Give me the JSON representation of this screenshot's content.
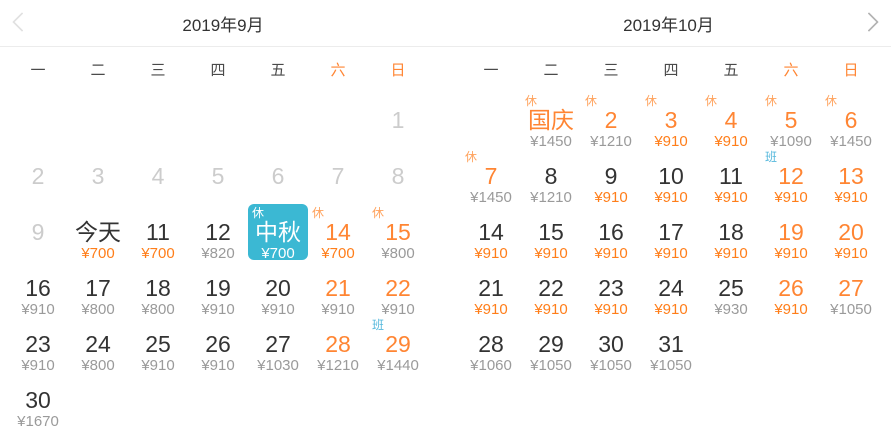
{
  "colors": {
    "accent_orange": "#ff7e1a",
    "day_orange": "#ff8533",
    "rest_badge_orange": "#ffa35e",
    "work_badge_blue": "#55b8dc",
    "selected_day_bg": "#3bb8d3",
    "price_gray": "#9a9a9a",
    "day_dark": "#333333",
    "past_day_gray": "#cccccc"
  },
  "nav": {
    "prev": "previous-month",
    "next": "next-month"
  },
  "weekdays": [
    {
      "label": "一",
      "weekend": false
    },
    {
      "label": "二",
      "weekend": false
    },
    {
      "label": "三",
      "weekend": false
    },
    {
      "label": "四",
      "weekend": false
    },
    {
      "label": "五",
      "weekend": false
    },
    {
      "label": "六",
      "weekend": true
    },
    {
      "label": "日",
      "weekend": true
    }
  ],
  "months": [
    {
      "title": "2019年9月",
      "cells": [
        {
          "label": "1",
          "col": 6,
          "day_color": "past",
          "price": "",
          "price_color": "",
          "badge": "",
          "badge_type": "",
          "selected": false
        },
        {
          "label": "2",
          "col": 0,
          "day_color": "past",
          "price": "",
          "price_color": "",
          "badge": "",
          "badge_type": "",
          "selected": false
        },
        {
          "label": "3",
          "col": 1,
          "day_color": "past",
          "price": "",
          "price_color": "",
          "badge": "",
          "badge_type": "",
          "selected": false
        },
        {
          "label": "4",
          "col": 2,
          "day_color": "past",
          "price": "",
          "price_color": "",
          "badge": "",
          "badge_type": "",
          "selected": false
        },
        {
          "label": "5",
          "col": 3,
          "day_color": "past",
          "price": "",
          "price_color": "",
          "badge": "",
          "badge_type": "",
          "selected": false
        },
        {
          "label": "6",
          "col": 4,
          "day_color": "past",
          "price": "",
          "price_color": "",
          "badge": "",
          "badge_type": "",
          "selected": false
        },
        {
          "label": "7",
          "col": 5,
          "day_color": "past",
          "price": "",
          "price_color": "",
          "badge": "",
          "badge_type": "",
          "selected": false
        },
        {
          "label": "8",
          "col": 6,
          "day_color": "past",
          "price": "",
          "price_color": "",
          "badge": "",
          "badge_type": "",
          "selected": false
        },
        {
          "label": "9",
          "col": 0,
          "day_color": "past",
          "price": "",
          "price_color": "",
          "badge": "",
          "badge_type": "",
          "selected": false
        },
        {
          "label": "今天",
          "col": 1,
          "day_color": "dark",
          "price": "¥700",
          "price_color": "orange",
          "badge": "",
          "badge_type": "",
          "selected": false
        },
        {
          "label": "11",
          "col": 2,
          "day_color": "dark",
          "price": "¥700",
          "price_color": "orange",
          "badge": "",
          "badge_type": "",
          "selected": false
        },
        {
          "label": "12",
          "col": 3,
          "day_color": "dark",
          "price": "¥820",
          "price_color": "gray",
          "badge": "",
          "badge_type": "",
          "selected": false
        },
        {
          "label": "中秋",
          "col": 4,
          "day_color": "dark",
          "price": "¥700",
          "price_color": "orange",
          "badge": "休",
          "badge_type": "rest",
          "selected": true
        },
        {
          "label": "14",
          "col": 5,
          "day_color": "orange",
          "price": "¥700",
          "price_color": "orange",
          "badge": "休",
          "badge_type": "rest",
          "selected": false
        },
        {
          "label": "15",
          "col": 6,
          "day_color": "orange",
          "price": "¥800",
          "price_color": "gray",
          "badge": "休",
          "badge_type": "rest",
          "selected": false
        },
        {
          "label": "16",
          "col": 0,
          "day_color": "dark",
          "price": "¥910",
          "price_color": "gray",
          "badge": "",
          "badge_type": "",
          "selected": false
        },
        {
          "label": "17",
          "col": 1,
          "day_color": "dark",
          "price": "¥800",
          "price_color": "gray",
          "badge": "",
          "badge_type": "",
          "selected": false
        },
        {
          "label": "18",
          "col": 2,
          "day_color": "dark",
          "price": "¥800",
          "price_color": "gray",
          "badge": "",
          "badge_type": "",
          "selected": false
        },
        {
          "label": "19",
          "col": 3,
          "day_color": "dark",
          "price": "¥910",
          "price_color": "gray",
          "badge": "",
          "badge_type": "",
          "selected": false
        },
        {
          "label": "20",
          "col": 4,
          "day_color": "dark",
          "price": "¥910",
          "price_color": "gray",
          "badge": "",
          "badge_type": "",
          "selected": false
        },
        {
          "label": "21",
          "col": 5,
          "day_color": "orange",
          "price": "¥910",
          "price_color": "gray",
          "badge": "",
          "badge_type": "",
          "selected": false
        },
        {
          "label": "22",
          "col": 6,
          "day_color": "orange",
          "price": "¥910",
          "price_color": "gray",
          "badge": "",
          "badge_type": "",
          "selected": false
        },
        {
          "label": "23",
          "col": 0,
          "day_color": "dark",
          "price": "¥910",
          "price_color": "gray",
          "badge": "",
          "badge_type": "",
          "selected": false
        },
        {
          "label": "24",
          "col": 1,
          "day_color": "dark",
          "price": "¥800",
          "price_color": "gray",
          "badge": "",
          "badge_type": "",
          "selected": false
        },
        {
          "label": "25",
          "col": 2,
          "day_color": "dark",
          "price": "¥910",
          "price_color": "gray",
          "badge": "",
          "badge_type": "",
          "selected": false
        },
        {
          "label": "26",
          "col": 3,
          "day_color": "dark",
          "price": "¥910",
          "price_color": "gray",
          "badge": "",
          "badge_type": "",
          "selected": false
        },
        {
          "label": "27",
          "col": 4,
          "day_color": "dark",
          "price": "¥1030",
          "price_color": "gray",
          "badge": "",
          "badge_type": "",
          "selected": false
        },
        {
          "label": "28",
          "col": 5,
          "day_color": "orange",
          "price": "¥1210",
          "price_color": "gray",
          "badge": "",
          "badge_type": "",
          "selected": false
        },
        {
          "label": "29",
          "col": 6,
          "day_color": "orange",
          "price": "¥1440",
          "price_color": "gray",
          "badge": "班",
          "badge_type": "work",
          "selected": false
        },
        {
          "label": "30",
          "col": 0,
          "day_color": "dark",
          "price": "¥1670",
          "price_color": "gray",
          "badge": "",
          "badge_type": "",
          "selected": false
        }
      ]
    },
    {
      "title": "2019年10月",
      "cells": [
        {
          "label": "国庆",
          "col": 1,
          "day_color": "orange",
          "price": "¥1450",
          "price_color": "gray",
          "badge": "休",
          "badge_type": "rest",
          "selected": false
        },
        {
          "label": "2",
          "col": 2,
          "day_color": "orange",
          "price": "¥1210",
          "price_color": "gray",
          "badge": "休",
          "badge_type": "rest",
          "selected": false
        },
        {
          "label": "3",
          "col": 3,
          "day_color": "orange",
          "price": "¥910",
          "price_color": "orange",
          "badge": "休",
          "badge_type": "rest",
          "selected": false
        },
        {
          "label": "4",
          "col": 4,
          "day_color": "orange",
          "price": "¥910",
          "price_color": "orange",
          "badge": "休",
          "badge_type": "rest",
          "selected": false
        },
        {
          "label": "5",
          "col": 5,
          "day_color": "orange",
          "price": "¥1090",
          "price_color": "gray",
          "badge": "休",
          "badge_type": "rest",
          "selected": false
        },
        {
          "label": "6",
          "col": 6,
          "day_color": "orange",
          "price": "¥1450",
          "price_color": "gray",
          "badge": "休",
          "badge_type": "rest",
          "selected": false
        },
        {
          "label": "7",
          "col": 0,
          "day_color": "orange",
          "price": "¥1450",
          "price_color": "gray",
          "badge": "休",
          "badge_type": "rest",
          "selected": false
        },
        {
          "label": "8",
          "col": 1,
          "day_color": "dark",
          "price": "¥1210",
          "price_color": "gray",
          "badge": "",
          "badge_type": "",
          "selected": false
        },
        {
          "label": "9",
          "col": 2,
          "day_color": "dark",
          "price": "¥910",
          "price_color": "orange",
          "badge": "",
          "badge_type": "",
          "selected": false
        },
        {
          "label": "10",
          "col": 3,
          "day_color": "dark",
          "price": "¥910",
          "price_color": "orange",
          "badge": "",
          "badge_type": "",
          "selected": false
        },
        {
          "label": "11",
          "col": 4,
          "day_color": "dark",
          "price": "¥910",
          "price_color": "orange",
          "badge": "",
          "badge_type": "",
          "selected": false
        },
        {
          "label": "12",
          "col": 5,
          "day_color": "orange",
          "price": "¥910",
          "price_color": "orange",
          "badge": "班",
          "badge_type": "work",
          "selected": false
        },
        {
          "label": "13",
          "col": 6,
          "day_color": "orange",
          "price": "¥910",
          "price_color": "orange",
          "badge": "",
          "badge_type": "",
          "selected": false
        },
        {
          "label": "14",
          "col": 0,
          "day_color": "dark",
          "price": "¥910",
          "price_color": "orange",
          "badge": "",
          "badge_type": "",
          "selected": false
        },
        {
          "label": "15",
          "col": 1,
          "day_color": "dark",
          "price": "¥910",
          "price_color": "orange",
          "badge": "",
          "badge_type": "",
          "selected": false
        },
        {
          "label": "16",
          "col": 2,
          "day_color": "dark",
          "price": "¥910",
          "price_color": "orange",
          "badge": "",
          "badge_type": "",
          "selected": false
        },
        {
          "label": "17",
          "col": 3,
          "day_color": "dark",
          "price": "¥910",
          "price_color": "orange",
          "badge": "",
          "badge_type": "",
          "selected": false
        },
        {
          "label": "18",
          "col": 4,
          "day_color": "dark",
          "price": "¥910",
          "price_color": "orange",
          "badge": "",
          "badge_type": "",
          "selected": false
        },
        {
          "label": "19",
          "col": 5,
          "day_color": "orange",
          "price": "¥910",
          "price_color": "orange",
          "badge": "",
          "badge_type": "",
          "selected": false
        },
        {
          "label": "20",
          "col": 6,
          "day_color": "orange",
          "price": "¥910",
          "price_color": "orange",
          "badge": "",
          "badge_type": "",
          "selected": false
        },
        {
          "label": "21",
          "col": 0,
          "day_color": "dark",
          "price": "¥910",
          "price_color": "orange",
          "badge": "",
          "badge_type": "",
          "selected": false
        },
        {
          "label": "22",
          "col": 1,
          "day_color": "dark",
          "price": "¥910",
          "price_color": "orange",
          "badge": "",
          "badge_type": "",
          "selected": false
        },
        {
          "label": "23",
          "col": 2,
          "day_color": "dark",
          "price": "¥910",
          "price_color": "orange",
          "badge": "",
          "badge_type": "",
          "selected": false
        },
        {
          "label": "24",
          "col": 3,
          "day_color": "dark",
          "price": "¥910",
          "price_color": "orange",
          "badge": "",
          "badge_type": "",
          "selected": false
        },
        {
          "label": "25",
          "col": 4,
          "day_color": "dark",
          "price": "¥930",
          "price_color": "gray",
          "badge": "",
          "badge_type": "",
          "selected": false
        },
        {
          "label": "26",
          "col": 5,
          "day_color": "orange",
          "price": "¥910",
          "price_color": "orange",
          "badge": "",
          "badge_type": "",
          "selected": false
        },
        {
          "label": "27",
          "col": 6,
          "day_color": "orange",
          "price": "¥1050",
          "price_color": "gray",
          "badge": "",
          "badge_type": "",
          "selected": false
        },
        {
          "label": "28",
          "col": 0,
          "day_color": "dark",
          "price": "¥1060",
          "price_color": "gray",
          "badge": "",
          "badge_type": "",
          "selected": false
        },
        {
          "label": "29",
          "col": 1,
          "day_color": "dark",
          "price": "¥1050",
          "price_color": "gray",
          "badge": "",
          "badge_type": "",
          "selected": false
        },
        {
          "label": "30",
          "col": 2,
          "day_color": "dark",
          "price": "¥1050",
          "price_color": "gray",
          "badge": "",
          "badge_type": "",
          "selected": false
        },
        {
          "label": "31",
          "col": 3,
          "day_color": "dark",
          "price": "¥1050",
          "price_color": "gray",
          "badge": "",
          "badge_type": "",
          "selected": false
        }
      ]
    }
  ]
}
